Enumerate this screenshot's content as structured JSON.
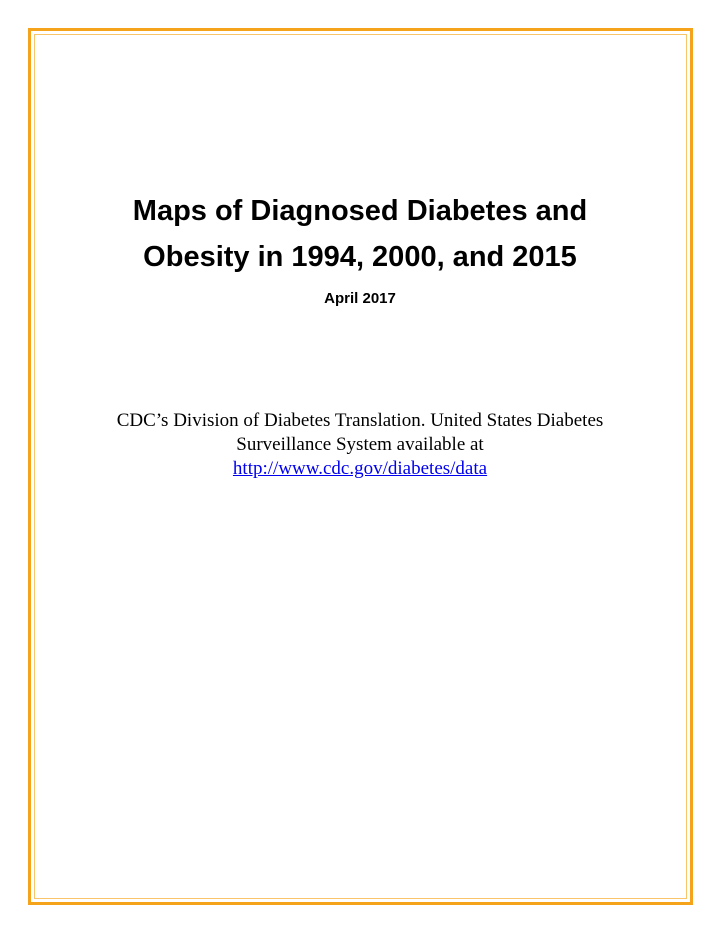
{
  "document": {
    "title_lines": [
      "Maps of Diagnosed Diabetes and",
      "Obesity in 1994, 2000, and 2015"
    ],
    "date": "April 2017",
    "citation": {
      "line1": "CDC’s Division of Diabetes Translation. United States Diabetes",
      "line2": "Surveillance System available at",
      "link_text": "http://www.cdc.gov/diabetes/data"
    },
    "colors": {
      "border": "#f5a31a",
      "link": "#0000ee",
      "text": "#000000"
    }
  }
}
